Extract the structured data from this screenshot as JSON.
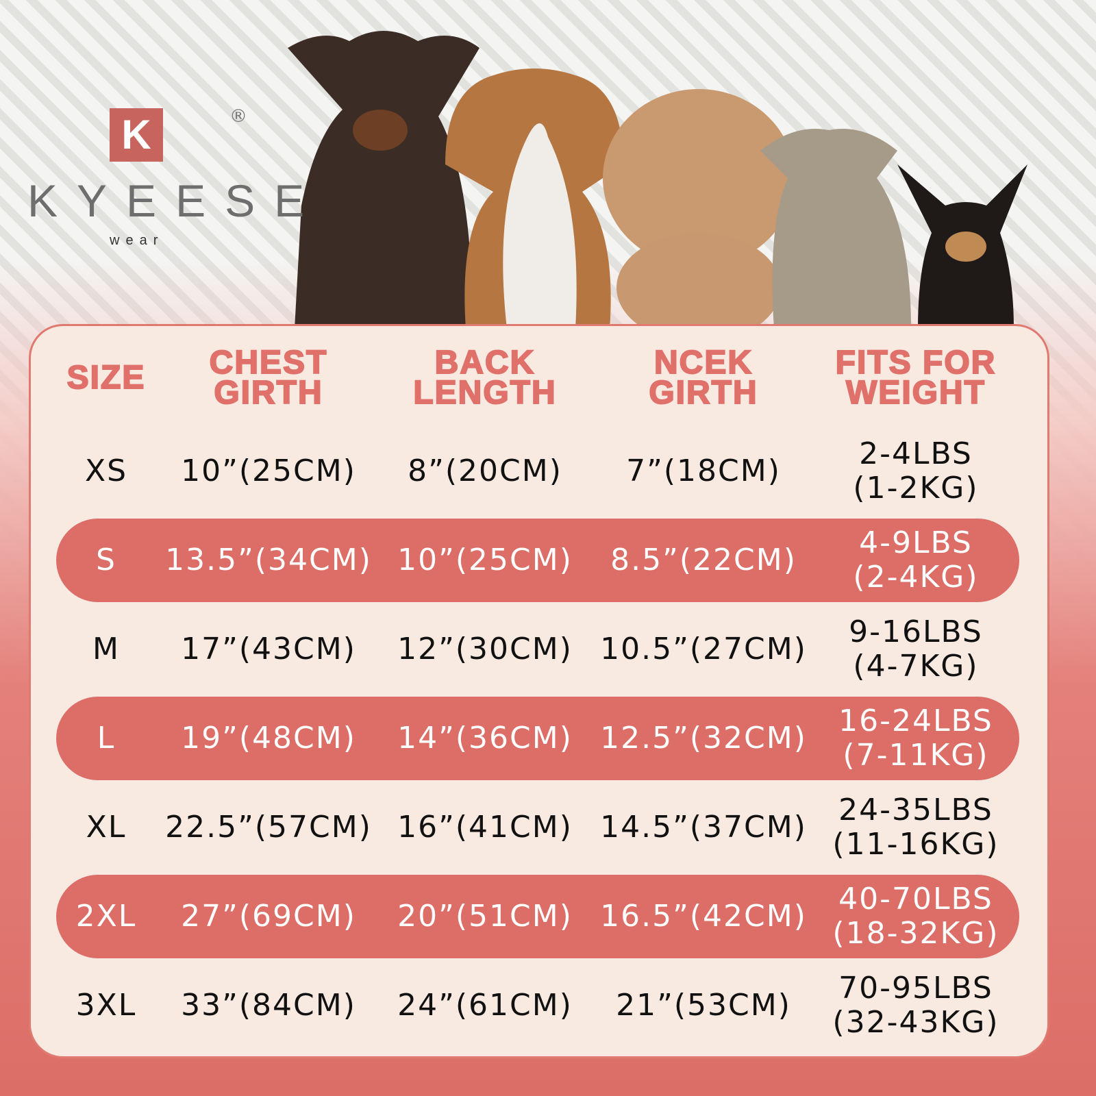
{
  "brand": {
    "mark": "K",
    "registered": "®",
    "name": "KYEESE",
    "sub": "wear"
  },
  "table": {
    "header": [
      [
        "SIZE"
      ],
      [
        "CHEST",
        "GIRTH"
      ],
      [
        "BACK",
        "LENGTH"
      ],
      [
        "NCEK",
        "GIRTH"
      ],
      [
        "FITS FOR",
        "WEIGHT"
      ]
    ],
    "rows": [
      [
        [
          "XS"
        ],
        [
          "10”(25CM)"
        ],
        [
          "8”(20CM)"
        ],
        [
          "7”(18CM)"
        ],
        [
          "2-4LBS",
          "(1-2KG)"
        ]
      ],
      [
        [
          "S"
        ],
        [
          "13.5”(34CM)"
        ],
        [
          "10”(25CM)"
        ],
        [
          "8.5”(22CM)"
        ],
        [
          "4-9LBS",
          "(2-4KG)"
        ]
      ],
      [
        [
          "M"
        ],
        [
          "17”(43CM)"
        ],
        [
          "12”(30CM)"
        ],
        [
          "10.5”(27CM)"
        ],
        [
          "9-16LBS",
          "(4-7KG)"
        ]
      ],
      [
        [
          "L"
        ],
        [
          "19”(48CM)"
        ],
        [
          "14”(36CM)"
        ],
        [
          "12.5”(32CM)"
        ],
        [
          "16-24LBS",
          "(7-11KG)"
        ]
      ],
      [
        [
          "XL"
        ],
        [
          "22.5”(57CM)"
        ],
        [
          "16”(41CM)"
        ],
        [
          "14.5”(37CM)"
        ],
        [
          "24-35LBS",
          "(11-16KG)"
        ]
      ],
      [
        [
          "2XL"
        ],
        [
          "27”(69CM)"
        ],
        [
          "20”(51CM)"
        ],
        [
          "16.5”(42CM)"
        ],
        [
          "40-70LBS",
          "(18-32KG)"
        ]
      ],
      [
        [
          "3XL"
        ],
        [
          "33”(84CM)"
        ],
        [
          "24”(61CM)"
        ],
        [
          "21”(53CM)"
        ],
        [
          "70-95LBS",
          "(32-43KG)"
        ]
      ]
    ]
  }
}
